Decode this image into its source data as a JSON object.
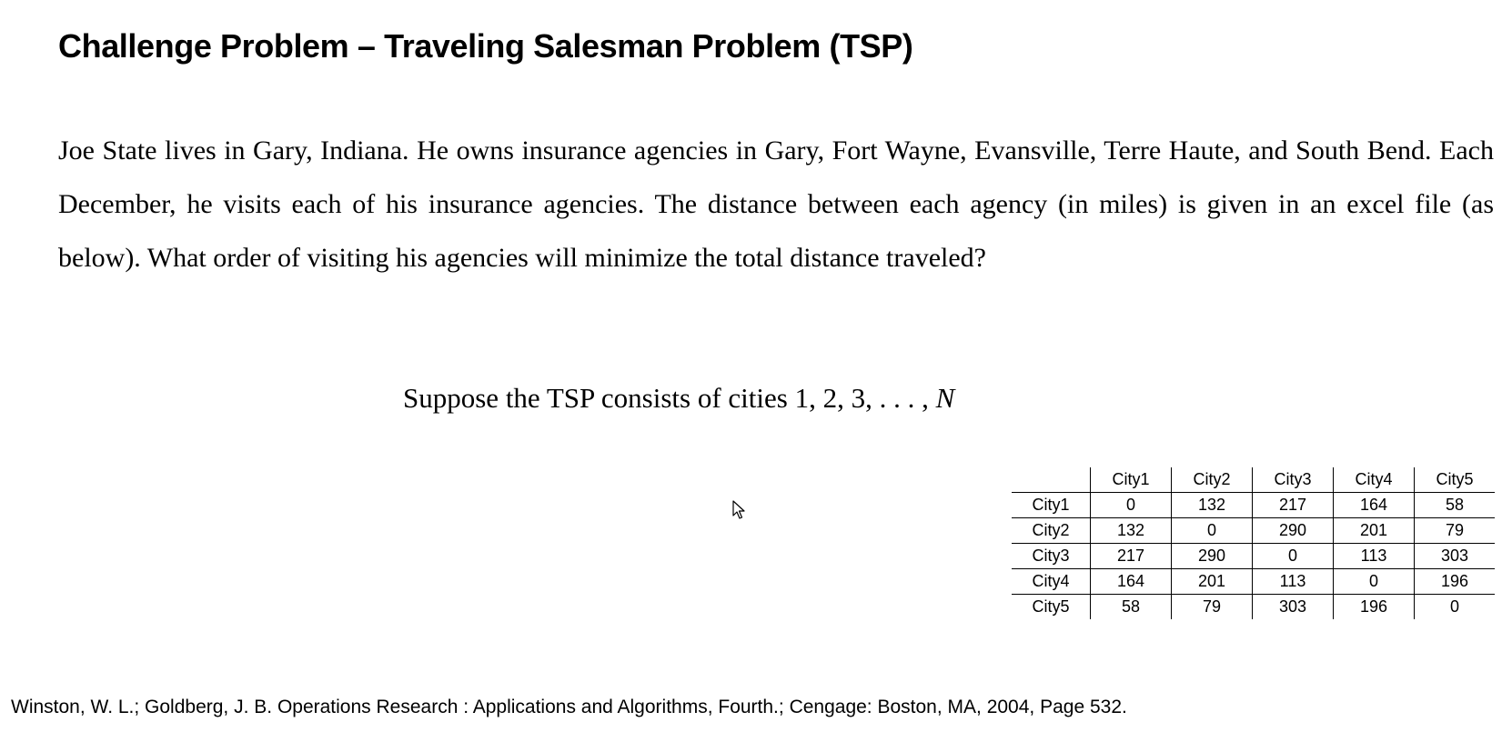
{
  "slide": {
    "title": "Challenge Problem – Traveling Salesman Problem (TSP)",
    "problem_text": "Joe State lives in Gary, Indiana. He owns insurance agencies in Gary, Fort Wayne, Evansville, Terre Haute, and South Bend. Each December, he visits each of his insurance agencies. The distance between each agency (in miles) is given in an excel file (as below). What order of visiting his agencies will minimize the total distance traveled?",
    "supposition_prefix": "Suppose the TSP consists of cities 1, 2, 3, . . . , ",
    "supposition_var": "N",
    "citation": "Winston, W. L.; Goldberg, J. B. Operations Research : Applications and Algorithms, Fourth.; Cengage: Boston, MA, 2004, Page 532."
  },
  "distance_table": {
    "columns": [
      "City1",
      "City2",
      "City3",
      "City4",
      "City5"
    ],
    "rows": [
      {
        "label": "City1",
        "values": [
          "0",
          "132",
          "217",
          "164",
          "58"
        ]
      },
      {
        "label": "City2",
        "values": [
          "132",
          "0",
          "290",
          "201",
          "79"
        ]
      },
      {
        "label": "City3",
        "values": [
          "217",
          "290",
          "0",
          "113",
          "303"
        ]
      },
      {
        "label": "City4",
        "values": [
          "164",
          "201",
          "113",
          "0",
          "196"
        ]
      },
      {
        "label": "City5",
        "values": [
          "58",
          "79",
          "303",
          "196",
          "0"
        ]
      }
    ]
  },
  "icons": {
    "cursor": "mouse-pointer-icon"
  }
}
